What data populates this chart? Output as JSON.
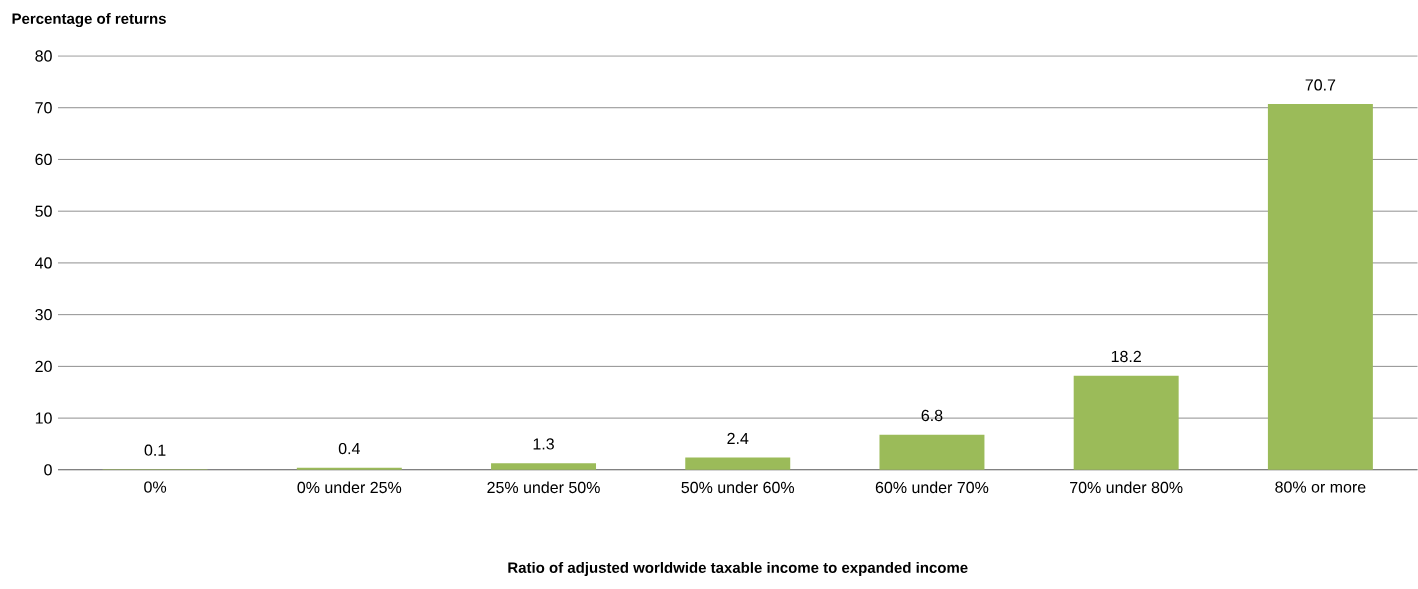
{
  "chart_data": {
    "type": "bar",
    "ylabel": "Percentage of returns",
    "xlabel": "Ratio of adjusted worldwide taxable income to expanded income",
    "categories": [
      "0%",
      "0% under 25%",
      "25% under 50%",
      "50% under 60%",
      "60% under 70%",
      "70% under 80%",
      "80% or more"
    ],
    "values": [
      0.1,
      0.4,
      1.3,
      2.4,
      6.8,
      18.2,
      70.7
    ],
    "color": "#9bbb59",
    "ylim": [
      0,
      80
    ],
    "yticks": [
      0,
      10,
      20,
      30,
      40,
      50,
      60,
      70,
      80
    ],
    "grid": "y",
    "data_labels": true
  }
}
